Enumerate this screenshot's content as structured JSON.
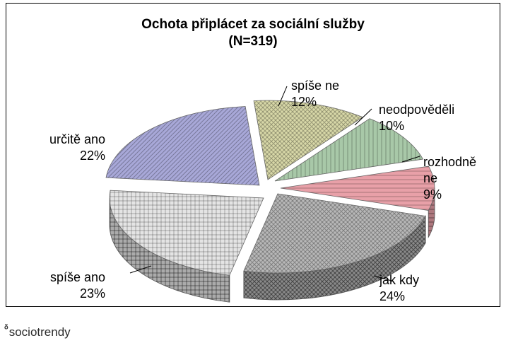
{
  "chart_data": {
    "type": "pie",
    "title": "Ochota připlácet za sociální služby",
    "subtitle": "(N=319)",
    "slices": [
      {
        "label_lines": [
          "rozhodně",
          "ne"
        ],
        "value": 9,
        "value_label": "9%",
        "color": "#e8a0a8",
        "pattern": "horizontal-lines"
      },
      {
        "label_lines": [
          "jak kdy"
        ],
        "value": 24,
        "value_label": "24%",
        "color": "#b8b8b8",
        "pattern": "diagonal-hatch"
      },
      {
        "label_lines": [
          "spíše ano"
        ],
        "value": 23,
        "value_label": "23%",
        "color": "#e4e4e4",
        "pattern": "checker"
      },
      {
        "label_lines": [
          "určitě ano"
        ],
        "value": 22,
        "value_label": "22%",
        "color": "#a8a8d8",
        "pattern": "diagonal-lines"
      },
      {
        "label_lines": [
          "spíše ne"
        ],
        "value": 12,
        "value_label": "12%",
        "color": "#d8d8a8",
        "pattern": "crosshatch"
      },
      {
        "label_lines": [
          "neodpověděli"
        ],
        "value": 10,
        "value_label": "10%",
        "color": "#a8c8a8",
        "pattern": "vertical-lines"
      }
    ],
    "style": "3d-exploded"
  },
  "brand": {
    "icon": "sociotrendy-logo-icon",
    "text": "sociotrendy"
  }
}
